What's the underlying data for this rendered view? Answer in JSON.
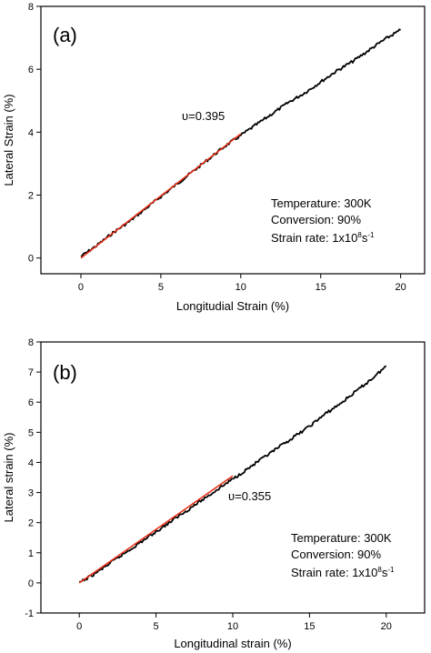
{
  "chart_data": [
    {
      "type": "line",
      "panel_label": "(a)",
      "xlabel": "Longitudial Strain (%)",
      "ylabel": "Lateral Strain (%)",
      "xlim": [
        -2.5,
        21.5
      ],
      "ylim": [
        -0.5,
        8
      ],
      "xticks": [
        0,
        5,
        10,
        15,
        20
      ],
      "yticks": [
        0,
        2,
        4,
        6,
        8
      ],
      "grid": false,
      "series": [
        {
          "role": "data",
          "color": "#000000",
          "x": [
            0,
            1,
            2,
            3,
            4,
            5,
            6,
            7,
            8,
            9,
            10,
            11,
            12,
            13,
            14,
            15,
            16,
            17,
            18,
            19,
            20
          ],
          "y": [
            0.05,
            0.4,
            0.8,
            1.15,
            1.55,
            1.95,
            2.35,
            2.75,
            3.15,
            3.55,
            3.9,
            4.25,
            4.6,
            4.95,
            5.25,
            5.6,
            5.95,
            6.25,
            6.6,
            6.95,
            7.25
          ]
        },
        {
          "role": "fit",
          "color": "#e8331c",
          "x": [
            0,
            10
          ],
          "y": [
            0,
            3.95
          ],
          "label": "υ=0.395"
        }
      ],
      "annotations": [
        "Temperature: 300K",
        "Conversion: 90%",
        "Strain rate: 1x10",
        "8",
        "s",
        "-1"
      ]
    },
    {
      "type": "line",
      "panel_label": "(b)",
      "xlabel": "Longitudinal strain (%)",
      "ylabel": "Lateral strain (%)",
      "xlim": [
        -2.5,
        22.5
      ],
      "ylim": [
        -1,
        8
      ],
      "xticks": [
        0,
        5,
        10,
        15,
        20
      ],
      "yticks": [
        -1,
        0,
        1,
        2,
        3,
        4,
        5,
        6,
        7,
        8
      ],
      "grid": false,
      "series": [
        {
          "role": "data",
          "color": "#000000",
          "x": [
            0,
            1,
            2,
            3,
            4,
            5,
            6,
            7,
            8,
            9,
            10,
            11,
            12,
            13,
            14,
            15,
            16,
            17,
            18,
            19,
            20
          ],
          "y": [
            0,
            0.3,
            0.65,
            1.0,
            1.35,
            1.7,
            2.05,
            2.4,
            2.75,
            3.1,
            3.45,
            3.8,
            4.15,
            4.5,
            4.85,
            5.2,
            5.6,
            5.95,
            6.35,
            6.75,
            7.2
          ]
        },
        {
          "role": "fit",
          "color": "#e8331c",
          "x": [
            0,
            10
          ],
          "y": [
            0,
            3.55
          ],
          "label": "υ=0.355"
        }
      ],
      "annotations": [
        "Temperature: 300K",
        "Conversion: 90%",
        "Strain rate: 1x10",
        "8",
        "s",
        "-1"
      ]
    }
  ]
}
